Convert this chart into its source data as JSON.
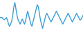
{
  "y": [
    0,
    0,
    0,
    -0.3,
    -0.5,
    -0.3,
    0,
    -0.5,
    -1.5,
    -2.0,
    -1.5,
    -0.8,
    0.5,
    2.5,
    3.5,
    2.0,
    0.5,
    -0.5,
    -1.0,
    -1.5,
    -0.8,
    -0.3,
    -1.0,
    -1.5,
    -0.8,
    0.5,
    1.5,
    0.5,
    -0.5,
    -1.5,
    -2.0,
    -1.0,
    0,
    1.0,
    2.0,
    3.0,
    2.5,
    1.0,
    -0.5,
    -1.5,
    -2.5,
    -1.5,
    -0.5,
    0.5,
    1.0,
    0.5,
    0,
    -0.5,
    -1.0,
    -0.5,
    0,
    0.5,
    1.0,
    1.5,
    1.0,
    0.5,
    0,
    -0.5,
    -1.0,
    -1.5,
    -1.0,
    -0.5,
    0,
    0.5,
    1.0,
    0.5,
    0,
    -0.5,
    -1.0,
    -0.5,
    0,
    0.5,
    1.0,
    0.5,
    0,
    -0.5,
    -0.5,
    0,
    0.5
  ],
  "line_color": "#3a9fd6",
  "background_color": "#ffffff",
  "linewidth": 1.0
}
